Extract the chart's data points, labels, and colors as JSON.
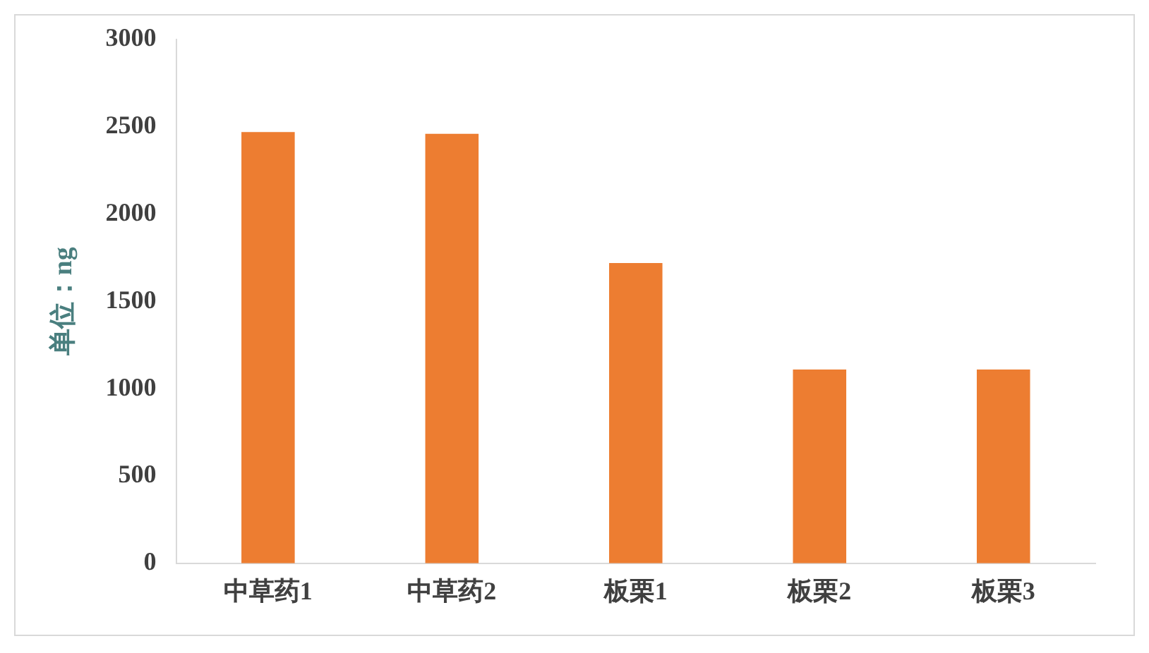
{
  "chart_data": {
    "type": "bar",
    "ylabel": "单位：ng",
    "categories": [
      "中草药1",
      "中草药2",
      "板栗1",
      "板栗2",
      "板栗3"
    ],
    "values": [
      2470,
      2460,
      1720,
      1110,
      1110
    ],
    "color": "#ed7d31",
    "ylim": [
      0,
      3000
    ],
    "yticks": [
      0,
      500,
      1000,
      1500,
      2000,
      2500,
      3000
    ],
    "grid": false,
    "legend": false
  }
}
